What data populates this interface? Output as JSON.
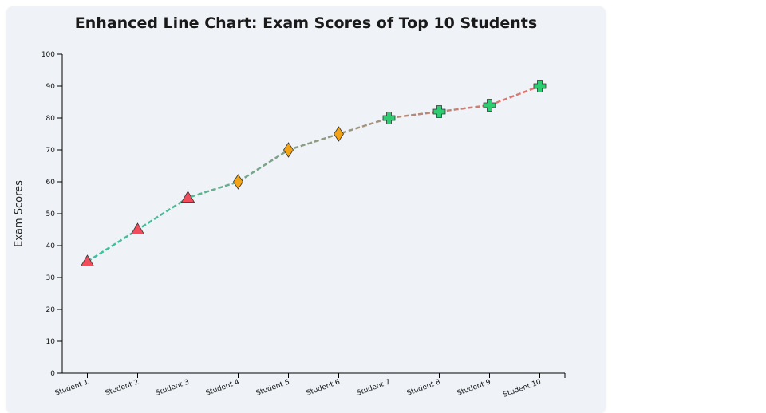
{
  "chart_data": {
    "type": "line",
    "title": "Enhanced Line Chart: Exam Scores of Top 10 Students",
    "xlabel": "",
    "ylabel": "Exam Scores",
    "ylim": [
      0,
      100
    ],
    "yticks": [
      0,
      10,
      20,
      30,
      40,
      50,
      60,
      70,
      80,
      90,
      100
    ],
    "categories": [
      "Student 1",
      "Student 2",
      "Student 3",
      "Student 4",
      "Student 5",
      "Student 6",
      "Student 7",
      "Student 8",
      "Student 9",
      "Student 10"
    ],
    "series": [
      {
        "values": [
          35,
          45,
          55,
          60,
          70,
          75,
          80,
          82,
          84,
          90
        ]
      }
    ],
    "markers": [
      "triangle",
      "triangle",
      "triangle",
      "diamond",
      "diamond",
      "diamond",
      "cross",
      "cross",
      "cross",
      "cross"
    ],
    "marker_colors": {
      "triangle": "#f04c5c",
      "diamond": "#f2a316",
      "cross": "#2ecc71"
    },
    "line_gradient": [
      "#2ec7a0",
      "#8f9c80",
      "#e8706c"
    ],
    "line_style": "dashed",
    "grid": false
  }
}
